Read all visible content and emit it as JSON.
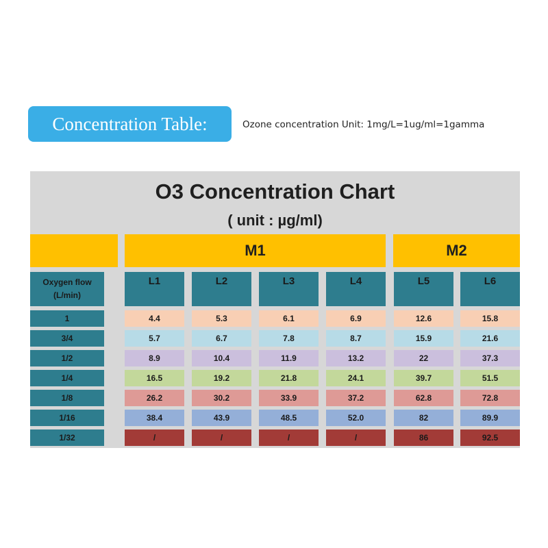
{
  "header": {
    "badge_label": "Concentration Table:",
    "unit_note": "Ozone concentration Unit: 1mg/L=1ug/ml=1gamma"
  },
  "chart": {
    "title": "O3 Concentration Chart",
    "subtitle": "( unit : µg/ml)",
    "groups": [
      "M1",
      "M2"
    ],
    "flow_header": [
      "Oxygen flow",
      "(L/min)"
    ],
    "columns": [
      "L1",
      "L2",
      "L3",
      "L4",
      "L5",
      "L6"
    ],
    "rows": [
      {
        "flow": "1",
        "color": "#f8cfb4",
        "values": [
          "4.4",
          "5.3",
          "6.1",
          "6.9",
          "12.6",
          "15.8"
        ]
      },
      {
        "flow": "3/4",
        "color": "#b7dbe7",
        "values": [
          "5.7",
          "6.7",
          "7.8",
          "8.7",
          "15.9",
          "21.6"
        ]
      },
      {
        "flow": "1/2",
        "color": "#cbbfdd",
        "values": [
          "8.9",
          "10.4",
          "11.9",
          "13.2",
          "22",
          "37.3"
        ]
      },
      {
        "flow": "1/4",
        "color": "#c3d89b",
        "values": [
          "16.5",
          "19.2",
          "21.8",
          "24.1",
          "39.7",
          "51.5"
        ]
      },
      {
        "flow": "1/8",
        "color": "#de9a96",
        "values": [
          "26.2",
          "30.2",
          "33.9",
          "37.2",
          "62.8",
          "72.8"
        ]
      },
      {
        "flow": "1/16",
        "color": "#94afd8",
        "values": [
          "38.4",
          "43.9",
          "48.5",
          "52.0",
          "82",
          "89.9"
        ]
      },
      {
        "flow": "1/32",
        "color": "#a23b37",
        "values": [
          "/",
          "/",
          "/",
          "/",
          "86",
          "92.5"
        ]
      }
    ]
  },
  "colors": {
    "badge": "#3aaee6",
    "panel": "#d7d7d7",
    "group_header": "#ffc000",
    "column_header": "#2e7d8e"
  }
}
